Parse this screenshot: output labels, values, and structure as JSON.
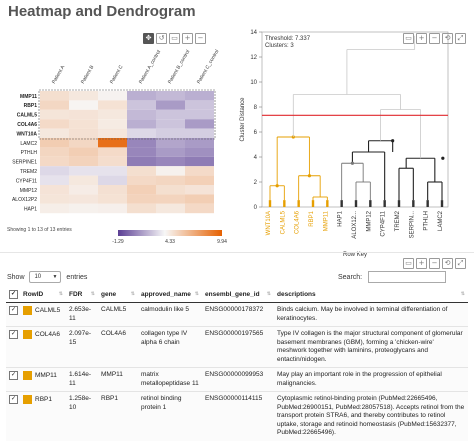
{
  "page": {
    "title": "Heatmap and Dendrogram"
  },
  "heatmap": {
    "toolbar": [
      {
        "name": "move-tool-button",
        "icon": "move-icon",
        "glyph": "✥"
      },
      {
        "name": "reset-view-button",
        "icon": "reset-icon",
        "glyph": "↺"
      },
      {
        "name": "zoom-box-button",
        "icon": "zoom-box-icon",
        "glyph": "▭"
      },
      {
        "name": "zoom-in-button",
        "icon": "zoom-in-icon",
        "glyph": "+"
      },
      {
        "name": "zoom-out-button",
        "icon": "zoom-out-icon",
        "glyph": "−"
      }
    ],
    "columns": [
      "Patient A",
      "Patient B",
      "Patient C",
      "Patient A_control",
      "Patient B_control",
      "Patient C_control"
    ],
    "rows": [
      "MMP11",
      "RBP1",
      "CALML5",
      "COL4A6",
      "WNT10A",
      "LAMC2",
      "PTHLH",
      "SERPINE1",
      "TREM2",
      "CYP4F11",
      "MMP12",
      "ALOX12P2",
      "HAP1"
    ],
    "bold_rows": [
      "MMP11",
      "RBP1",
      "CALML5",
      "COL4A6",
      "WNT10A"
    ],
    "values": [
      [
        1.6,
        1.0,
        0.3,
        -0.7,
        -0.6,
        -0.7
      ],
      [
        2.1,
        0.2,
        1.4,
        -0.5,
        -0.9,
        -0.5
      ],
      [
        1.2,
        1.3,
        1.0,
        -0.6,
        -0.5,
        -0.5
      ],
      [
        1.9,
        1.4,
        0.8,
        -0.7,
        -0.5,
        -0.9
      ],
      [
        1.0,
        1.5,
        1.1,
        -0.3,
        -0.4,
        -0.4
      ],
      [
        2.8,
        2.1,
        9.0,
        -1.1,
        -0.8,
        -0.9
      ],
      [
        2.2,
        2.7,
        1.9,
        -1.1,
        -0.9,
        -1.0
      ],
      [
        2.0,
        2.4,
        1.7,
        -1.2,
        -1.1,
        -1.2
      ],
      [
        -0.3,
        -0.2,
        -0.2,
        1.6,
        0.4,
        1.9
      ],
      [
        -0.2,
        1.0,
        -0.3,
        2.0,
        2.2,
        2.6
      ],
      [
        1.3,
        0.7,
        1.5,
        2.6,
        1.6,
        1.3
      ],
      [
        1.2,
        1.1,
        1.4,
        2.4,
        2.3,
        2.7
      ],
      [
        0.6,
        0.4,
        0.5,
        1.6,
        1.0,
        2.0
      ]
    ],
    "legend": {
      "min": "-1.29",
      "mid": "4.33",
      "max": "9.94",
      "low_color": "#5b3e94",
      "mid_color": "#f7f7f7",
      "high_color": "#e66101"
    },
    "info": "Showing 1 to 13 of 13 entries"
  },
  "dendrogram": {
    "annotation": {
      "threshold": "Threshold: 7.337",
      "clusters": "Clusters: 3"
    },
    "ylabel": "Cluster Distance",
    "xlabel": "Row Key",
    "yticks": [
      "0",
      "2",
      "4",
      "6",
      "8",
      "10",
      "12",
      "14"
    ],
    "ylim": [
      0,
      14
    ],
    "threshold_value": 7.337,
    "leaves": [
      "WNT10A",
      "CALML5",
      "COL4A6",
      "RBP1",
      "MMP11",
      "HAP1",
      "ALOX12...",
      "MMP12",
      "CYP4F11",
      "TREM2",
      "SERPIN...",
      "PTHLH",
      "LAMC2"
    ],
    "highlight_color": "#e69f00",
    "threshold_color": "#e0282e",
    "toolbar": [
      {
        "name": "dendro-zoom-box-button",
        "icon": "zoom-box-icon",
        "glyph": "▭"
      },
      {
        "name": "dendro-zoom-in-button",
        "icon": "zoom-in-icon",
        "glyph": "+"
      },
      {
        "name": "dendro-zoom-out-button",
        "icon": "zoom-out-icon",
        "glyph": "−"
      },
      {
        "name": "dendro-reset-button",
        "icon": "reset-icon",
        "glyph": "⟲"
      },
      {
        "name": "dendro-fullscreen-button",
        "icon": "fullscreen-icon",
        "glyph": "⤢"
      }
    ]
  },
  "table_toolbar": [
    {
      "name": "table-zoom-box-button",
      "icon": "zoom-box-icon",
      "glyph": "▭"
    },
    {
      "name": "table-zoom-in-button",
      "icon": "zoom-in-icon",
      "glyph": "+"
    },
    {
      "name": "table-zoom-out-button",
      "icon": "zoom-out-icon",
      "glyph": "−"
    },
    {
      "name": "table-reset-button",
      "icon": "reset-icon",
      "glyph": "⟲"
    },
    {
      "name": "table-fullscreen-button",
      "icon": "fullscreen-icon",
      "glyph": "⤢"
    }
  ],
  "table": {
    "show_label": "Show",
    "entries_label": "entries",
    "page_size": "10",
    "search_label": "Search:",
    "search_value": "",
    "headers": [
      "",
      "RowID",
      "FDR",
      "gene",
      "approved_name",
      "ensembl_gene_id",
      "descriptions"
    ],
    "rows": [
      {
        "checked": "✓",
        "rowid": "CALML5",
        "fdr": "2.653e-11",
        "gene": "CALML5",
        "approved_name": "calmodulin like 5",
        "ensembl": "ENSG00000178372",
        "description": "Binds calcium. May be involved in terminal differentiation of keratinocytes."
      },
      {
        "checked": "✓",
        "rowid": "COL4A6",
        "fdr": "2.097e-15",
        "gene": "COL4A6",
        "approved_name": "collagen type IV alpha 6 chain",
        "ensembl": "ENSG00000197565",
        "description": "Type IV collagen is the major structural component of glomerular basement membranes (GBM), forming a 'chicken-wire' meshwork together with laminins, proteoglycans and entactin/nidogen."
      },
      {
        "checked": "✓",
        "rowid": "MMP11",
        "fdr": "1.614e-11",
        "gene": "MMP11",
        "approved_name": "matrix metallopeptidase 11",
        "ensembl": "ENSG00000099953",
        "description": "May play an important role in the progression of epithelial malignancies."
      },
      {
        "checked": "✓",
        "rowid": "RBP1",
        "fdr": "1.258e-10",
        "gene": "RBP1",
        "approved_name": "retinol binding protein 1",
        "ensembl": "ENSG00000114115",
        "description": "Cytoplasmic retinol-binding protein (PubMed:22665496, PubMed:26900151, PubMed:28057518). Accepts retinol from the transport protein STRA6, and thereby contributes to retinol uptake, storage and retinoid homeostasis (PubMed:15632377, PubMed:22665496)."
      }
    ]
  }
}
